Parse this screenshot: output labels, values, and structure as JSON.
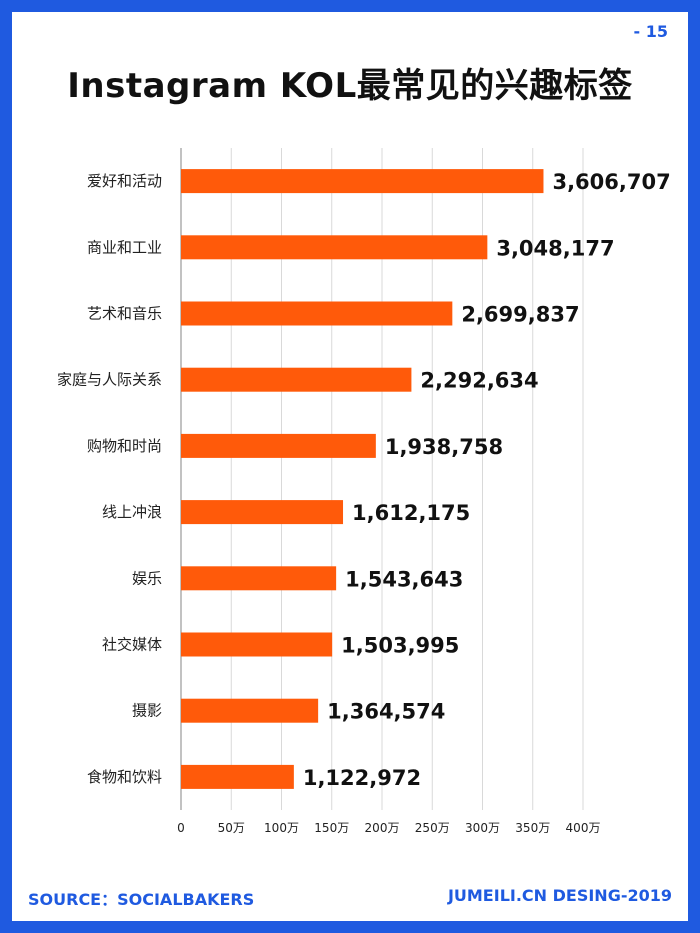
{
  "page": {
    "number": "- 15"
  },
  "chart_data": {
    "type": "bar",
    "orientation": "horizontal",
    "title": "Instagram KOL最常见的兴趣标签",
    "categories": [
      "爱好和活动",
      "商业和工业",
      "艺术和音乐",
      "家庭与人际关系",
      "购物和时尚",
      "线上冲浪",
      "娱乐",
      "社交媒体",
      "摄影",
      "食物和饮料"
    ],
    "values": [
      3606707,
      3048177,
      2699837,
      2292634,
      1938758,
      1612175,
      1543643,
      1503995,
      1364574,
      1122972
    ],
    "value_labels": [
      "3,606,707",
      "3,048,177",
      "2,699,837",
      "2,292,634",
      "1,938,758",
      "1,612,175",
      "1,543,643",
      "1,503,995",
      "1,364,574",
      "1,122,972"
    ],
    "x_ticks": [
      0,
      500000,
      1000000,
      1500000,
      2000000,
      2500000,
      3000000,
      3500000,
      4000000
    ],
    "x_tick_labels": [
      "0",
      "50万",
      "100万",
      "150万",
      "200万",
      "250万",
      "300万",
      "350万",
      "400万"
    ],
    "xlim": [
      0,
      4000000
    ],
    "grid": true,
    "bar_color": "#ff5a0a",
    "grid_color": "#d9d9d9"
  },
  "footer": {
    "source": "SOURCE：SOCIALBAKERS",
    "credit": "JUMEILI.CN DESING-2019"
  },
  "colors": {
    "border": "#1f5ae0",
    "accent": "#1f5ae0"
  }
}
